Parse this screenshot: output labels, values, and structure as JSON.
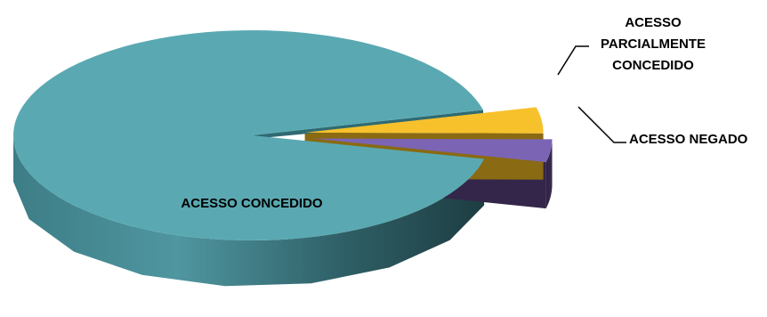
{
  "chart_data": {
    "type": "pie",
    "style": "3d-exploded",
    "title": "",
    "legend": "none",
    "slices": [
      {
        "label": "ACESSO CONCEDIDO",
        "value": 92.5,
        "color": "#5aa9b2"
      },
      {
        "label": "ACESSO NEGADO",
        "value": 3.5,
        "color": "#7b64b4"
      },
      {
        "label": "ACESSO PARCIALMENTE CONCEDIDO",
        "value": 4.0,
        "color": "#f7c12b"
      }
    ],
    "label_lines": {
      "ACESSO CONCEDIDO": [
        "ACESSO CONCEDIDO"
      ],
      "ACESSO NEGADO": [
        "ACESSO NEGADO"
      ],
      "ACESSO PARCIALMENTE CONCEDIDO": [
        "ACESSO",
        "PARCIALMENTE",
        "CONCEDIDO"
      ]
    }
  }
}
